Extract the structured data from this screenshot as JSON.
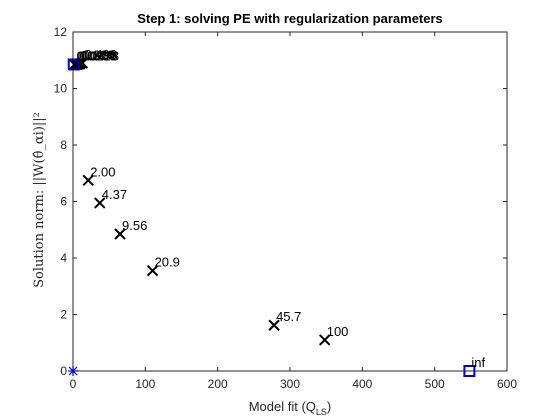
{
  "chart_data": {
    "type": "scatter",
    "title": "Step 1: solving PE with regularization parameters",
    "xlabel_main": "Model fit (Q",
    "xlabel_sub": "LS",
    "xlabel_end": ")",
    "ylabel": "Solution norm: ||W(θ̂_αi)||²",
    "xlim": [
      0,
      600
    ],
    "ylim": [
      0,
      12
    ],
    "xticks": [
      "0",
      "100",
      "200",
      "300",
      "400",
      "500",
      "600"
    ],
    "yticks": [
      "0",
      "2",
      "4",
      "6",
      "8",
      "10",
      "12"
    ],
    "grid": false,
    "series": [
      {
        "marker": "x",
        "color": "#000000",
        "points": [
          {
            "x": 21,
            "y": 6.75,
            "label": "2.00"
          },
          {
            "x": 37,
            "y": 5.95,
            "label": "4.37"
          },
          {
            "x": 65,
            "y": 4.85,
            "label": "9.56"
          },
          {
            "x": 110,
            "y": 3.55,
            "label": "20.9"
          },
          {
            "x": 278,
            "y": 1.62,
            "label": "45.7"
          },
          {
            "x": 348,
            "y": 1.1,
            "label": "100"
          },
          {
            "x": 2,
            "y": 10.85,
            "label": "0.0100"
          },
          {
            "x": 4,
            "y": 10.85,
            "label": "0.0218"
          },
          {
            "x": 6,
            "y": 10.85,
            "label": "0.0478"
          },
          {
            "x": 8,
            "y": 10.86,
            "label": "0.104"
          },
          {
            "x": 10,
            "y": 10.88,
            "label": "0.228"
          },
          {
            "x": 13,
            "y": 10.9,
            "label": "0.498"
          }
        ]
      },
      {
        "marker": "square",
        "color": "#0000d0",
        "points": [
          {
            "x": 1,
            "y": 10.85,
            "label": ""
          },
          {
            "x": 548,
            "y": 0,
            "label": "inf"
          }
        ]
      },
      {
        "marker": "star",
        "color": "#0000d0",
        "points": [
          {
            "x": 0,
            "y": 0,
            "label": ""
          }
        ]
      }
    ]
  }
}
